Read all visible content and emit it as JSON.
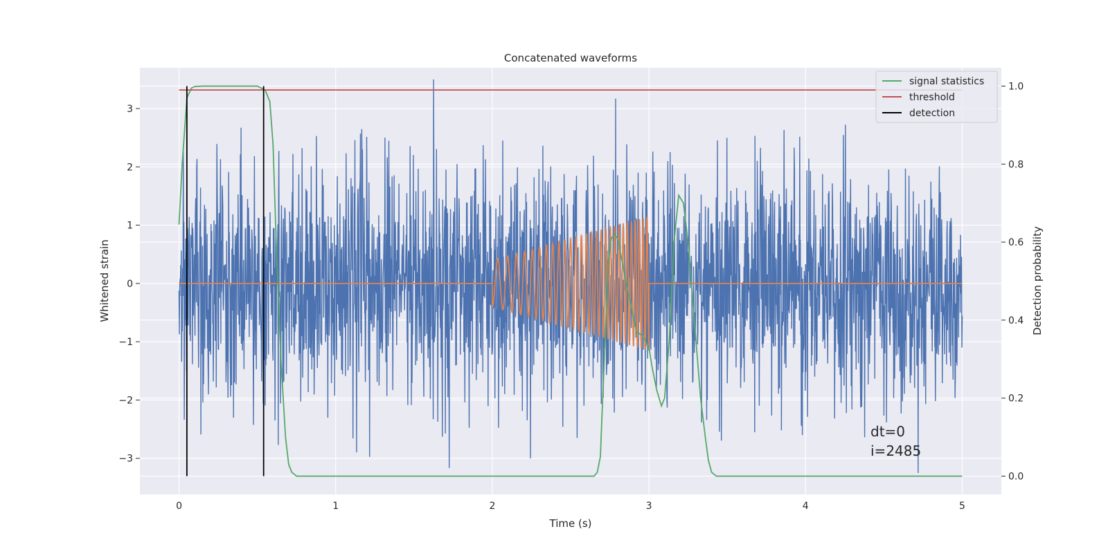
{
  "chart_data": {
    "type": "line",
    "title": "Concatenated waveforms",
    "xlabel": "Time (s)",
    "ylabel_left": "Whitened strain",
    "ylabel_right": "Detection probability",
    "xlim": [
      -0.25,
      5.25
    ],
    "ylim_left": [
      -3.62,
      3.7
    ],
    "ylim_right": [
      -0.047,
      1.047
    ],
    "x_ticks": [
      0,
      1,
      2,
      3,
      4,
      5
    ],
    "x_tick_labels": [
      "0",
      "1",
      "2",
      "3",
      "4",
      "5"
    ],
    "y_left_ticks": [
      -3,
      -2,
      -1,
      0,
      1,
      2,
      3
    ],
    "y_left_tick_labels": [
      "−3",
      "−2",
      "−1",
      "0",
      "1",
      "2",
      "3"
    ],
    "y_right_ticks": [
      0.0,
      0.2,
      0.4,
      0.6,
      0.8,
      1.0
    ],
    "y_right_tick_labels": [
      "0.0",
      "0.2",
      "0.4",
      "0.6",
      "0.8",
      "1.0"
    ],
    "grid": true,
    "legend_position": "top-right",
    "legend": [
      {
        "label": "signal statistics",
        "color": "#55a868"
      },
      {
        "label": "threshold",
        "color": "#c44e52"
      },
      {
        "label": "detection",
        "color": "#000000"
      }
    ],
    "annotations": [
      "dt=0",
      "i=2485"
    ],
    "series": [
      {
        "role": "whitened strain noise",
        "color": "#4c72b0",
        "axis": "left",
        "x_range": [
          0,
          5
        ],
        "amplitude_envelope": 1.0,
        "peak_max": 3.5,
        "peak_min": -3.3,
        "points": 2400
      },
      {
        "role": "injected chirp waveform",
        "color": "#dd8452",
        "axis": "left",
        "zero_segments": [
          [
            0,
            2
          ],
          [
            3,
            5
          ]
        ],
        "chirp": {
          "t_start": 2.0,
          "t_end": 3.0,
          "amp_start": 0.4,
          "amp_end": 1.15,
          "freq_start": 14,
          "freq_end": 42
        }
      },
      {
        "name": "signal statistics",
        "color": "#55a868",
        "axis": "right",
        "x": [
          0.0,
          0.02,
          0.05,
          0.08,
          0.1,
          0.15,
          0.5,
          0.55,
          0.58,
          0.6,
          0.62,
          0.65,
          0.68,
          0.7,
          0.72,
          0.75,
          0.8,
          2.65,
          2.67,
          2.69,
          2.7,
          2.72,
          2.74,
          2.76,
          2.78,
          2.8,
          2.83,
          2.85,
          2.88,
          2.92,
          2.96,
          3.0,
          3.02,
          3.05,
          3.08,
          3.1,
          3.13,
          3.16,
          3.19,
          3.22,
          3.25,
          3.28,
          3.3,
          3.33,
          3.36,
          3.38,
          3.4,
          3.43,
          3.47,
          5.0
        ],
        "y": [
          0.645,
          0.8,
          0.97,
          0.995,
          0.999,
          1.0,
          1.0,
          0.99,
          0.96,
          0.85,
          0.6,
          0.3,
          0.1,
          0.03,
          0.01,
          0.0,
          0.0,
          0.0,
          0.01,
          0.05,
          0.15,
          0.35,
          0.55,
          0.61,
          0.62,
          0.61,
          0.55,
          0.5,
          0.45,
          0.37,
          0.36,
          0.33,
          0.28,
          0.22,
          0.18,
          0.2,
          0.35,
          0.6,
          0.72,
          0.7,
          0.6,
          0.45,
          0.35,
          0.2,
          0.1,
          0.04,
          0.01,
          0.0,
          0.0,
          0.0
        ]
      },
      {
        "name": "threshold",
        "color": "#c44e52",
        "axis": "right",
        "x": [
          0,
          5
        ],
        "y": [
          0.99,
          0.99
        ]
      },
      {
        "name": "detection",
        "color": "#000000",
        "axis": "right",
        "vertical_lines_at_x": [
          0.05,
          0.54
        ],
        "y_range": [
          0,
          1
        ]
      }
    ]
  }
}
